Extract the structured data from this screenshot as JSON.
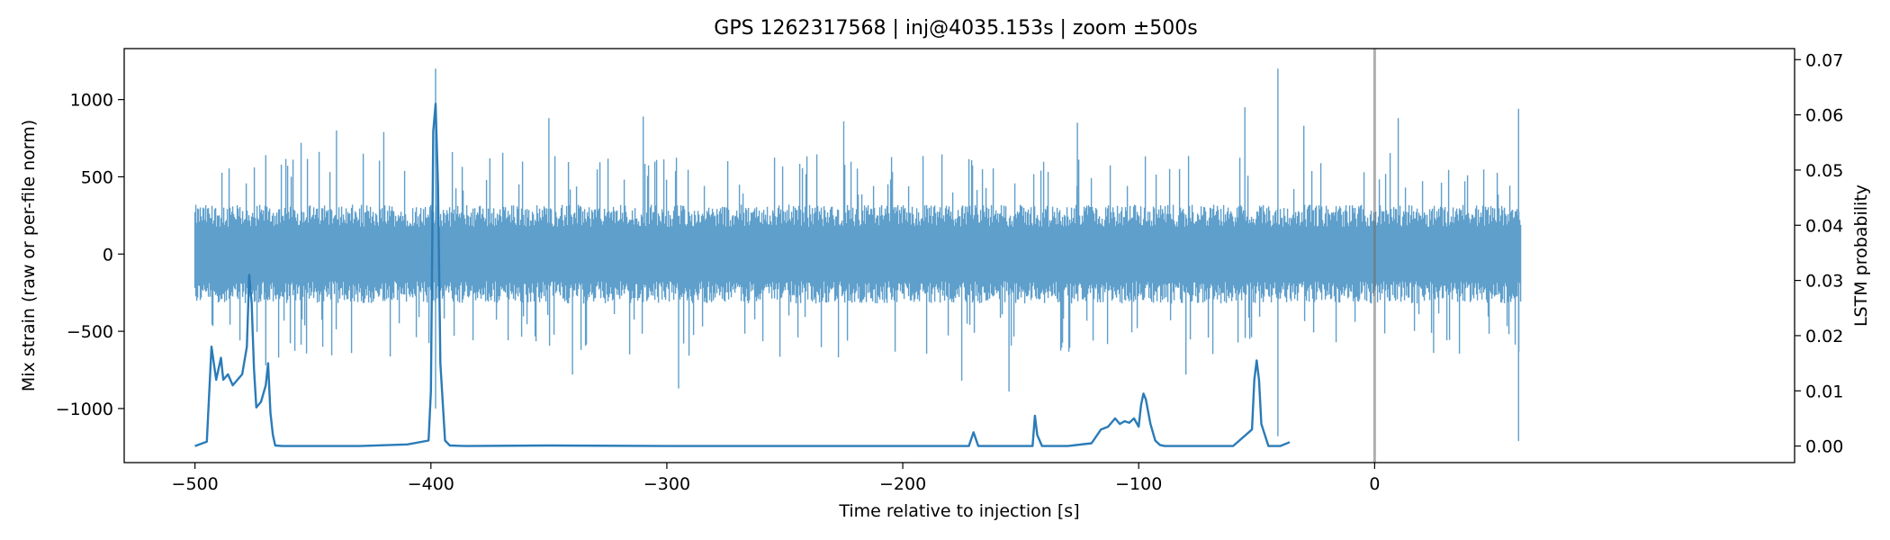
{
  "chart_data": {
    "type": "line",
    "title": "GPS 1262317568 | inj@4035.153s | zoom ±500s",
    "xlabel": "Time relative to injection [s]",
    "ylabel_left": "Mix strain (raw or per-file norm)",
    "ylabel_right": "LSTM probability",
    "xlim": [
      -530,
      178
    ],
    "ylim_left": [
      -1350,
      1330
    ],
    "ylim_right": [
      -0.003,
      0.072
    ],
    "x_ticks": [
      -500,
      -400,
      -300,
      -200,
      -100,
      0
    ],
    "x_tick_labels": [
      "−500",
      "−400",
      "−300",
      "−200",
      "−100",
      "0"
    ],
    "y_left_ticks": [
      1000,
      500,
      0,
      -500,
      -1000
    ],
    "y_left_tick_labels": [
      "1000",
      "500",
      "0",
      "−500",
      "−1000"
    ],
    "y_right_ticks": [
      0.0,
      0.01,
      0.02,
      0.03,
      0.04,
      0.05,
      0.06,
      0.07
    ],
    "y_right_tick_labels": [
      "0.00",
      "0.01",
      "0.02",
      "0.03",
      "0.04",
      "0.05",
      "0.06",
      "0.07"
    ],
    "grid": false,
    "injection_marker_x": 0,
    "series": [
      {
        "axis": "left",
        "color": "#5f9fcb",
        "style": "dense-noise",
        "x_range": [
          -500,
          62
        ],
        "typical_amplitude": 320,
        "spikes": [
          {
            "x": -398,
            "y": 1200
          },
          {
            "x": -398,
            "y": -1000
          },
          {
            "x": -41,
            "y": 1200
          },
          {
            "x": -41,
            "y": -1180
          },
          {
            "x": 61,
            "y": 940
          },
          {
            "x": 61,
            "y": -1210
          },
          {
            "x": -470,
            "y": 640
          },
          {
            "x": -470,
            "y": -720
          },
          {
            "x": -455,
            "y": 720
          },
          {
            "x": -440,
            "y": 800
          },
          {
            "x": -420,
            "y": 790
          },
          {
            "x": -375,
            "y": 620
          },
          {
            "x": -350,
            "y": 880
          },
          {
            "x": -340,
            "y": -780
          },
          {
            "x": -310,
            "y": 890
          },
          {
            "x": -295,
            "y": -870
          },
          {
            "x": -225,
            "y": 860
          },
          {
            "x": -175,
            "y": -820
          },
          {
            "x": -155,
            "y": -890
          },
          {
            "x": -126,
            "y": 850
          },
          {
            "x": -80,
            "y": -780
          },
          {
            "x": -55,
            "y": 950
          },
          {
            "x": -30,
            "y": 830
          },
          {
            "x": 10,
            "y": 880
          },
          {
            "x": 25,
            "y": -640
          }
        ]
      },
      {
        "axis": "right",
        "color": "#2a7bb8",
        "style": "line",
        "x": [
          -500,
          -495,
          -493,
          -491,
          -489,
          -488,
          -486,
          -484,
          -482,
          -480,
          -478,
          -477,
          -476,
          -475,
          -474,
          -472,
          -470,
          -469,
          -468,
          -467,
          -466,
          -463,
          -450,
          -430,
          -410,
          -401,
          -400,
          -399,
          -398,
          -397,
          -396,
          -394,
          -392,
          -385,
          -350,
          -300,
          -250,
          -200,
          -172,
          -170,
          -168,
          -150,
          -145,
          -144,
          -143,
          -141,
          -130,
          -120,
          -116,
          -113,
          -110,
          -108,
          -106,
          -104,
          -102,
          -100,
          -99,
          -98,
          -97,
          -95,
          -93,
          -91,
          -89,
          -80,
          -60,
          -52,
          -51,
          -50,
          -49,
          -48,
          -45,
          -40,
          -36
        ],
        "y": [
          0.0,
          0.0008,
          0.018,
          0.012,
          0.016,
          0.012,
          0.013,
          0.011,
          0.012,
          0.013,
          0.018,
          0.031,
          0.026,
          0.014,
          0.007,
          0.008,
          0.011,
          0.015,
          0.006,
          0.002,
          0.0001,
          0.0,
          0.0,
          0.0,
          0.0003,
          0.001,
          0.01,
          0.057,
          0.062,
          0.047,
          0.015,
          0.001,
          0.0001,
          0.0,
          0.0001,
          0.0,
          0.0,
          0.0,
          0.0,
          0.0025,
          0.0,
          0.0,
          0.0,
          0.0055,
          0.002,
          0.0,
          0.0,
          0.0005,
          0.003,
          0.0035,
          0.005,
          0.004,
          0.0045,
          0.0042,
          0.005,
          0.0035,
          0.0075,
          0.0095,
          0.0085,
          0.004,
          0.001,
          0.0002,
          0.0,
          0.0,
          0.0,
          0.003,
          0.012,
          0.0155,
          0.012,
          0.004,
          0.0,
          0.0,
          0.0007
        ]
      }
    ]
  }
}
